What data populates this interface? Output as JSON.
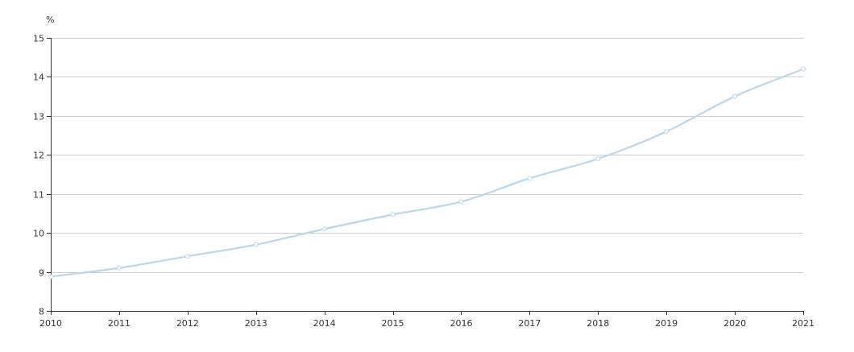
{
  "chart_data": {
    "type": "line",
    "title": "",
    "xlabel": "",
    "ylabel": "%",
    "x": [
      "2010",
      "2011",
      "2012",
      "2013",
      "2014",
      "2015",
      "2016",
      "2017",
      "2018",
      "2019",
      "2020",
      "2021"
    ],
    "series": [
      {
        "values": [
          8.88,
          9.1,
          9.4,
          9.7,
          10.1,
          10.47,
          10.8,
          11.4,
          11.9,
          12.6,
          13.5,
          14.2
        ],
        "color": "#b5d7f0"
      }
    ],
    "ylim": [
      8,
      15
    ],
    "yticks": [
      "8",
      "9",
      "10",
      "11",
      "12",
      "13",
      "14",
      "15"
    ],
    "grid": true,
    "legend": "none"
  }
}
